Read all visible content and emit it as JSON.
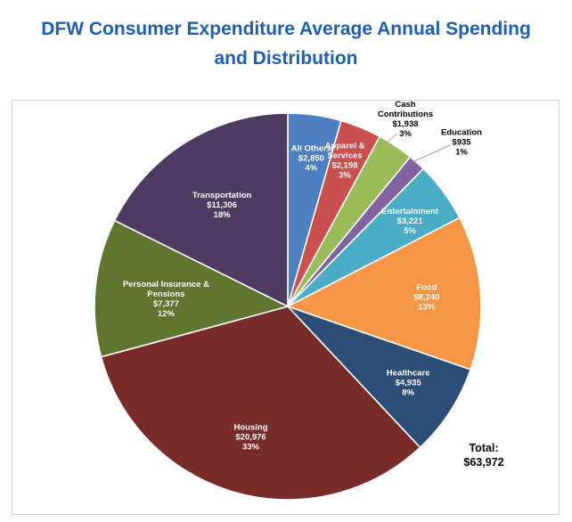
{
  "header": {
    "title_line1": "DFW Consumer Expenditure Average Annual Spending",
    "title_line2": "and Distribution"
  },
  "colors": {
    "title": "#1f5fae"
  },
  "chart_data": {
    "type": "pie",
    "title": "DFW Consumer Expenditure Average Annual Spending and Distribution",
    "start_angle_deg": 0,
    "direction": "clockwise",
    "slices": [
      {
        "name": "All Others",
        "lines": [
          "All Others",
          "$2,850",
          "4%"
        ],
        "value": 2850,
        "percent": "4%",
        "color": "#4e7fc0",
        "label_inside": true,
        "label_color": "#ffffff"
      },
      {
        "name": "Apparel & Services",
        "lines": [
          "Apparel &",
          "Services",
          "$2,198",
          "3%"
        ],
        "value": 2198,
        "percent": "3%",
        "color": "#c9504e",
        "label_inside": true,
        "label_color": "#ffffff"
      },
      {
        "name": "Cash Contributions",
        "lines": [
          "Cash",
          "Contributions",
          "$1,938",
          "3%"
        ],
        "value": 1938,
        "percent": "3%",
        "color": "#9bbb59",
        "label_inside": false,
        "label_color": "#000000"
      },
      {
        "name": "Education",
        "lines": [
          "Education",
          "$935",
          "1%"
        ],
        "value": 935,
        "percent": "1%",
        "color": "#8064a2",
        "label_inside": false,
        "label_color": "#000000"
      },
      {
        "name": "Entertainment",
        "lines": [
          "Entertainment",
          "$3,221",
          "5%"
        ],
        "value": 3221,
        "percent": "5%",
        "color": "#4bacc6",
        "label_inside": true,
        "label_color": "#ffffff"
      },
      {
        "name": "Food",
        "lines": [
          "Food",
          "$8,240",
          "13%"
        ],
        "value": 8240,
        "percent": "13%",
        "color": "#f79646",
        "label_inside": true,
        "label_color": "#ffffff"
      },
      {
        "name": "Healthcare",
        "lines": [
          "Healthcare",
          "$4,935",
          "8%"
        ],
        "value": 4935,
        "percent": "8%",
        "color": "#2c4d75",
        "label_inside": true,
        "label_color": "#ffffff"
      },
      {
        "name": "Housing",
        "lines": [
          "Housing",
          "$20,976",
          "33%"
        ],
        "value": 20976,
        "percent": "33%",
        "color": "#772c2a",
        "label_inside": true,
        "label_color": "#ffffff"
      },
      {
        "name": "Personal Insurance & Pensions",
        "lines": [
          "Personal Insurance &",
          "Pensions",
          "$7,377",
          "12%"
        ],
        "value": 7377,
        "percent": "12%",
        "color": "#5f7530",
        "label_inside": true,
        "label_color": "#ffffff"
      },
      {
        "name": "Transportation",
        "lines": [
          "Transportation",
          "$11,306",
          "18%"
        ],
        "value": 11306,
        "percent": "18%",
        "color": "#4d3b62",
        "label_inside": true,
        "label_color": "#ffffff"
      }
    ],
    "total_label": "Total:",
    "total_value": "$63,972"
  }
}
